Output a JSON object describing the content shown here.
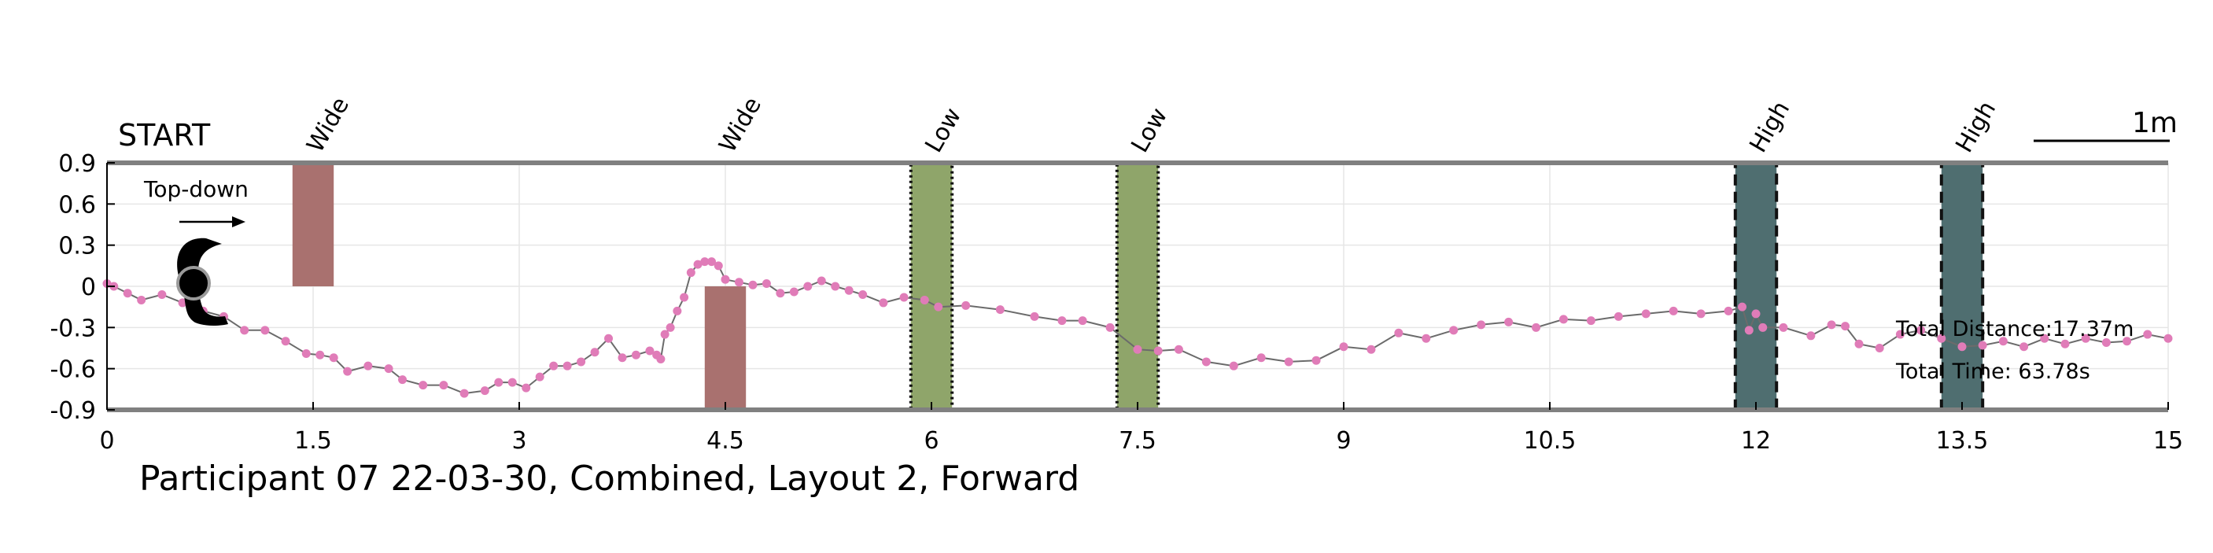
{
  "chart_data": {
    "type": "line",
    "title": "Participant 07 22-03-30, Combined, Layout 2, Forward",
    "start_label": "START",
    "direction_label": "Top-down",
    "scale_label": "1m",
    "total_distance": "Total Distance:17.37m",
    "total_time": "Total Time: 63.78s",
    "xlim": [
      0,
      15
    ],
    "ylim": [
      -0.9,
      0.9
    ],
    "x_ticks": [
      "0",
      "1.5",
      "3",
      "4.5",
      "6",
      "7.5",
      "9",
      "10.5",
      "12",
      "13.5",
      "15"
    ],
    "x_tick_values": [
      0,
      1.5,
      3,
      4.5,
      6,
      7.5,
      9,
      10.5,
      12,
      13.5,
      15
    ],
    "y_ticks": [
      "0.9",
      "0.6",
      "0.3",
      "0",
      "-0.3",
      "-0.6",
      "-0.9"
    ],
    "y_tick_values": [
      0.9,
      0.6,
      0.3,
      0,
      -0.3,
      -0.6,
      -0.9
    ],
    "grid": true,
    "colors": {
      "wide": "#a9716f",
      "low": "#8fa56a",
      "high": "#4f6e70",
      "path_line": "#6b6b6b",
      "path_marker": "#e07cb8",
      "boundary": "#808080"
    },
    "obstacles": [
      {
        "label": "Wide",
        "type": "wide",
        "x0": 1.35,
        "x1": 1.65,
        "y0": 0.0,
        "y1": 0.9,
        "label_x": 1.55
      },
      {
        "label": "Wide",
        "type": "wide",
        "x0": 4.35,
        "x1": 4.65,
        "y0": -0.9,
        "y1": 0.0,
        "label_x": 4.55
      },
      {
        "label": "Low",
        "type": "low",
        "x0": 5.85,
        "x1": 6.15,
        "y0": -0.9,
        "y1": 0.9,
        "label_x": 6.05
      },
      {
        "label": "Low",
        "type": "low",
        "x0": 7.35,
        "x1": 7.65,
        "y0": -0.9,
        "y1": 0.9,
        "label_x": 7.55
      },
      {
        "label": "High",
        "type": "high",
        "x0": 11.85,
        "x1": 12.15,
        "y0": -0.9,
        "y1": 0.9,
        "label_x": 12.05
      },
      {
        "label": "High",
        "type": "high",
        "x0": 13.35,
        "x1": 13.65,
        "y0": -0.9,
        "y1": 0.9,
        "label_x": 13.55
      }
    ],
    "series": [
      {
        "x": [
          0.0,
          0.05,
          0.15,
          0.25,
          0.4,
          0.55,
          0.7,
          0.85,
          1.0,
          1.15,
          1.3,
          1.45,
          1.55,
          1.65,
          1.75,
          1.9,
          2.05,
          2.15,
          2.3,
          2.45,
          2.6,
          2.75,
          2.85,
          2.95,
          3.05,
          3.15,
          3.25,
          3.35,
          3.45,
          3.55,
          3.65,
          3.75,
          3.85,
          3.95,
          4.0,
          4.03,
          4.06,
          4.1,
          4.15,
          4.2,
          4.25,
          4.3,
          4.35,
          4.4,
          4.45,
          4.5,
          4.6,
          4.7,
          4.8,
          4.9,
          5.0,
          5.1,
          5.2,
          5.3,
          5.4,
          5.5,
          5.65,
          5.8,
          5.95,
          6.05,
          6.25,
          6.5,
          6.75,
          6.95,
          7.1,
          7.3,
          7.5,
          7.65,
          7.8,
          8.0,
          8.2,
          8.4,
          8.6,
          8.8,
          9.0,
          9.2,
          9.4,
          9.6,
          9.8,
          10.0,
          10.2,
          10.4,
          10.6,
          10.8,
          11.0,
          11.2,
          11.4,
          11.6,
          11.8,
          11.9,
          11.95,
          12.0,
          12.05,
          12.2,
          12.4,
          12.55,
          12.65,
          12.75,
          12.9,
          13.05,
          13.2,
          13.35,
          13.5,
          13.65,
          13.8,
          13.95,
          14.1,
          14.25,
          14.4,
          14.55,
          14.7,
          14.85,
          15.0
        ],
        "y": [
          0.02,
          0.0,
          -0.05,
          -0.1,
          -0.06,
          -0.12,
          -0.18,
          -0.22,
          -0.32,
          -0.32,
          -0.4,
          -0.49,
          -0.5,
          -0.52,
          -0.62,
          -0.58,
          -0.6,
          -0.68,
          -0.72,
          -0.72,
          -0.78,
          -0.76,
          -0.7,
          -0.7,
          -0.74,
          -0.66,
          -0.58,
          -0.58,
          -0.55,
          -0.48,
          -0.38,
          -0.52,
          -0.5,
          -0.47,
          -0.5,
          -0.53,
          -0.35,
          -0.3,
          -0.18,
          -0.08,
          0.1,
          0.16,
          0.18,
          0.18,
          0.15,
          0.05,
          0.03,
          0.01,
          0.02,
          -0.05,
          -0.04,
          0.0,
          0.04,
          0.0,
          -0.03,
          -0.06,
          -0.12,
          -0.08,
          -0.1,
          -0.15,
          -0.14,
          -0.17,
          -0.22,
          -0.25,
          -0.25,
          -0.3,
          -0.46,
          -0.47,
          -0.46,
          -0.55,
          -0.58,
          -0.52,
          -0.55,
          -0.54,
          -0.44,
          -0.46,
          -0.34,
          -0.38,
          -0.32,
          -0.28,
          -0.26,
          -0.3,
          -0.24,
          -0.25,
          -0.22,
          -0.2,
          -0.18,
          -0.2,
          -0.18,
          -0.15,
          -0.32,
          -0.2,
          -0.3,
          -0.3,
          -0.36,
          -0.28,
          -0.29,
          -0.42,
          -0.45,
          -0.35,
          -0.32,
          -0.38,
          -0.44,
          -0.43,
          -0.4,
          -0.44,
          -0.38,
          -0.42,
          -0.38,
          -0.41,
          -0.4,
          -0.35,
          -0.38
        ]
      }
    ]
  }
}
